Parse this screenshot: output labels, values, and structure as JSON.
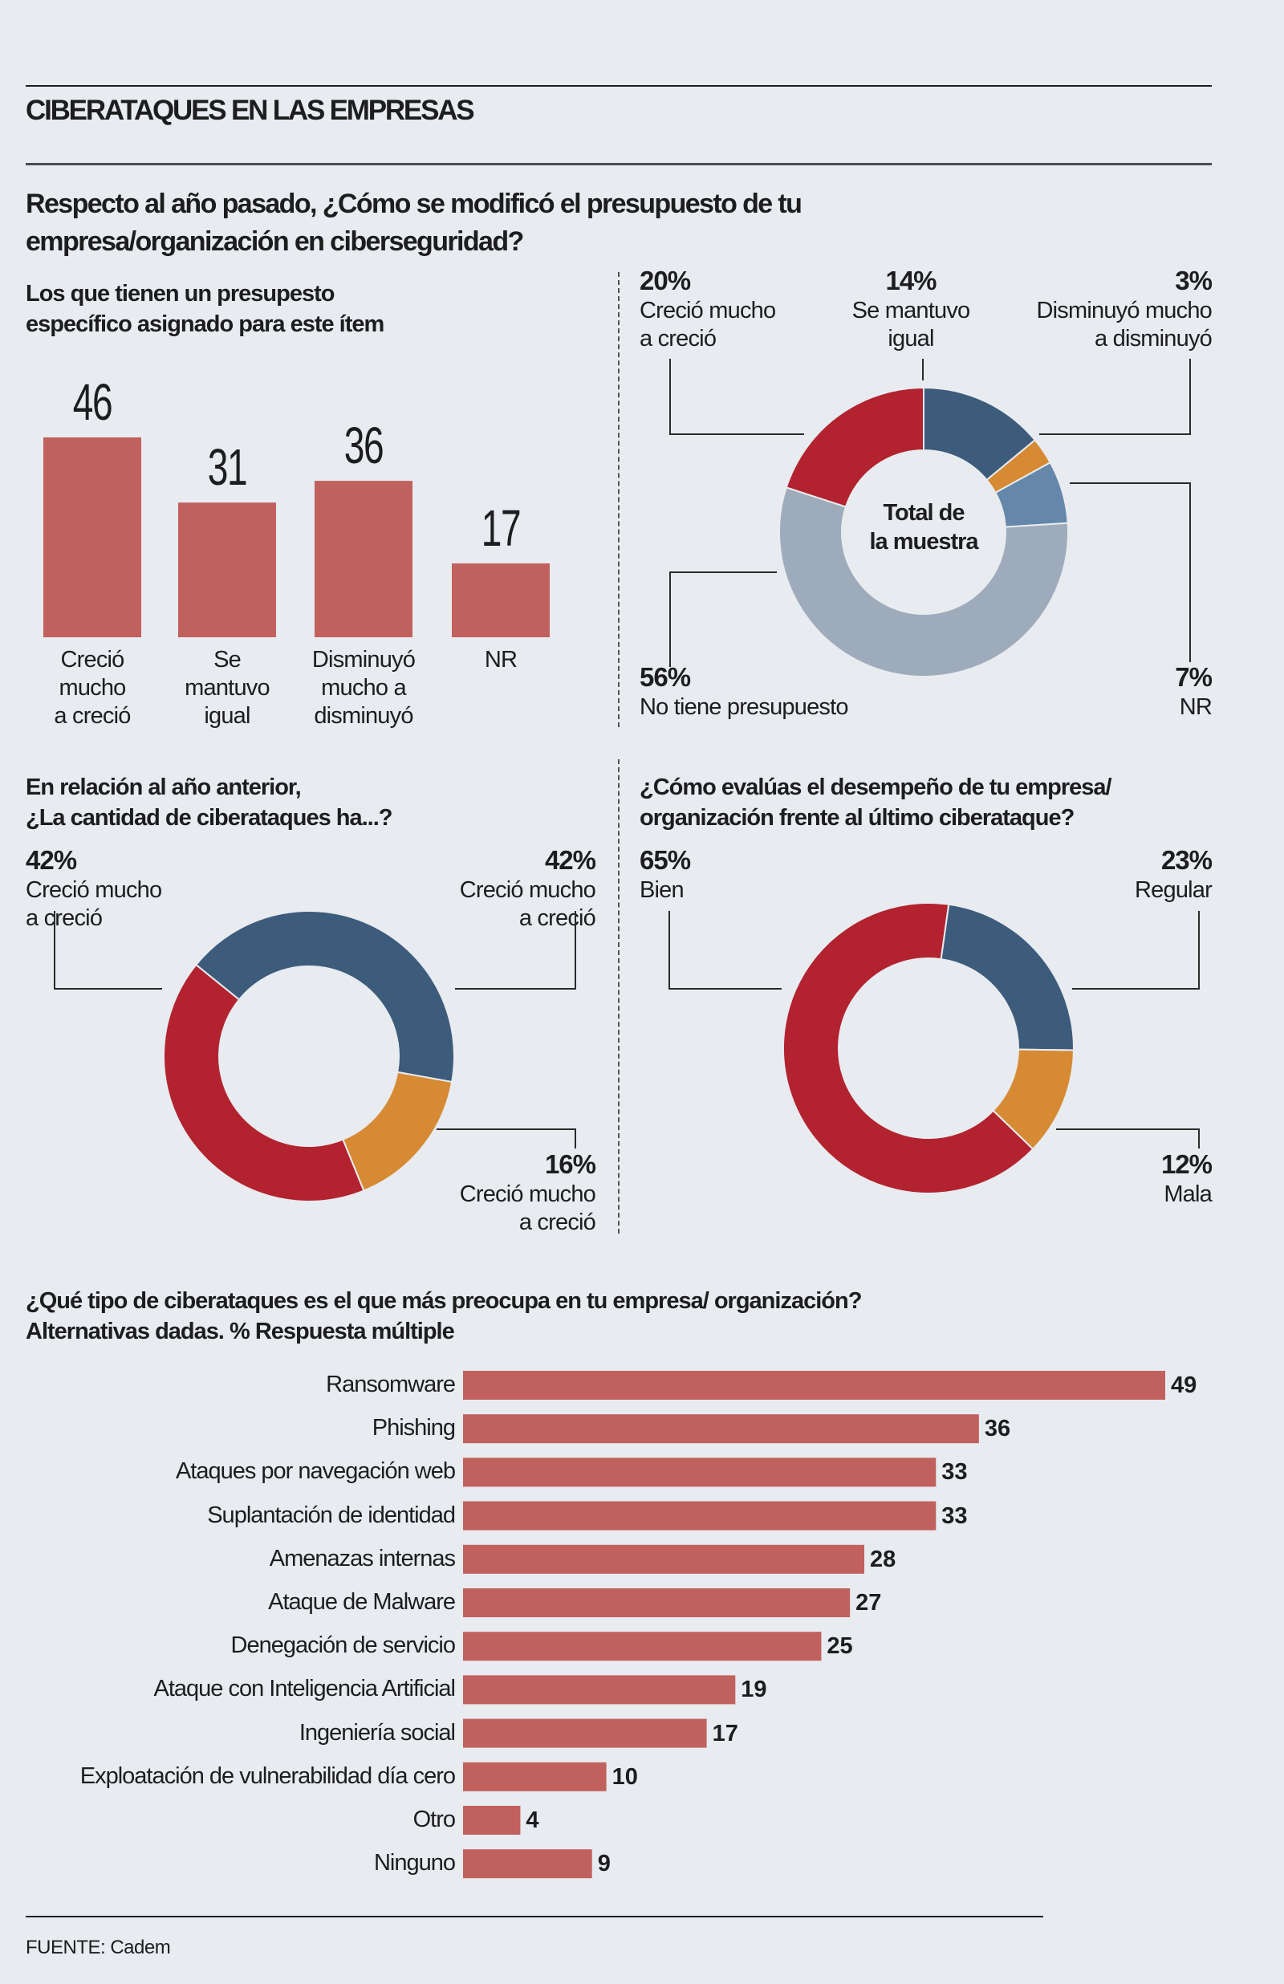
{
  "header": {
    "title": "CIBERATAQUES EN LAS EMPRESAS"
  },
  "q1": {
    "line1": "Respecto al año pasado, ¿Cómo se modificó el presupuesto de tu",
    "line2": "empresa/organización en ciberseguridad?",
    "sub_line1": "Los que tienen un presupesto",
    "sub_line2": "específico asignado para este ítem"
  },
  "colors": {
    "bar": "#c1615e",
    "red": "#b2232f",
    "dark_blue": "#3d5c7c",
    "orange": "#d68a33",
    "light_blue": "#6487aa",
    "grey": "#9eabbb",
    "background": "#e8ebef"
  },
  "chart_data": [
    {
      "type": "bar",
      "title": "Los que tienen un presupesto específico asignado para este ítem",
      "categories": [
        [
          "Creció",
          "mucho",
          "a creció"
        ],
        [
          "Se",
          "mantuvo",
          "igual"
        ],
        [
          "Disminuyó",
          "mucho a",
          "disminuyó"
        ],
        [
          "NR"
        ]
      ],
      "values": [
        "46",
        "31",
        "36",
        "17"
      ],
      "ylim": [
        0,
        46
      ]
    },
    {
      "type": "pie",
      "center_label": [
        "Total de",
        "la muestra"
      ],
      "slices": [
        {
          "pct": "14%",
          "value": 14,
          "label": [
            "Se mantuvo",
            "igual"
          ],
          "color": "#3d5c7c"
        },
        {
          "pct": "3%",
          "value": 3,
          "label": [
            "Disminuyó mucho",
            "a disminuyó"
          ],
          "color": "#d68a33"
        },
        {
          "pct": "7%",
          "value": 7,
          "label": [
            "NR"
          ],
          "color": "#6487aa"
        },
        {
          "pct": "56%",
          "value": 56,
          "label": [
            "No tiene presupuesto"
          ],
          "color": "#9eabbb"
        },
        {
          "pct": "20%",
          "value": 20,
          "label": [
            "Creció mucho",
            "a creció"
          ],
          "color": "#b2232f"
        }
      ]
    },
    {
      "type": "pie",
      "title": [
        "En relación al año anterior,",
        "¿La cantidad de ciberataques ha...?"
      ],
      "slices": [
        {
          "pct": "42%",
          "value": 42,
          "label": [
            "Creció mucho",
            "a creció"
          ],
          "color": "#3d5c7c"
        },
        {
          "pct": "16%",
          "value": 16,
          "label": [
            "Creció mucho",
            "a creció"
          ],
          "color": "#d68a33"
        },
        {
          "pct": "42%",
          "value": 42,
          "label": [
            "Creció mucho",
            "a creció"
          ],
          "color": "#b2232f"
        }
      ]
    },
    {
      "type": "pie",
      "title": [
        "¿Cómo evalúas el desempeño de tu empresa/",
        "organización frente al último ciberataque?"
      ],
      "slices": [
        {
          "pct": "23%",
          "value": 23,
          "label": [
            "Regular"
          ],
          "color": "#3d5c7c"
        },
        {
          "pct": "12%",
          "value": 12,
          "label": [
            "Mala"
          ],
          "color": "#d68a33"
        },
        {
          "pct": "65%",
          "value": 65,
          "label": [
            "Bien"
          ],
          "color": "#b2232f"
        }
      ]
    },
    {
      "type": "bar",
      "orientation": "horizontal",
      "title": [
        "¿Qué tipo de ciberataques es el que más preocupa en tu empresa/ organización?",
        "Alternativas dadas. % Respuesta múltiple"
      ],
      "categories": [
        "Ransomware",
        "Phishing",
        "Ataques por navegación web",
        "Suplantación de identidad",
        "Amenazas internas",
        "Ataque de Malware",
        "Denegación de servicio",
        "Ataque con Inteligencia Artificial",
        "Ingeniería social",
        "Exploatación de vulnerabilidad día cero",
        "Otro",
        "Ninguno"
      ],
      "values": [
        "49",
        "36",
        "33",
        "33",
        "28",
        "27",
        "25",
        "19",
        "17",
        "10",
        "4",
        "9"
      ],
      "xlim": [
        0,
        49
      ]
    }
  ],
  "footer": {
    "source": "FUENTE: Cadem"
  }
}
